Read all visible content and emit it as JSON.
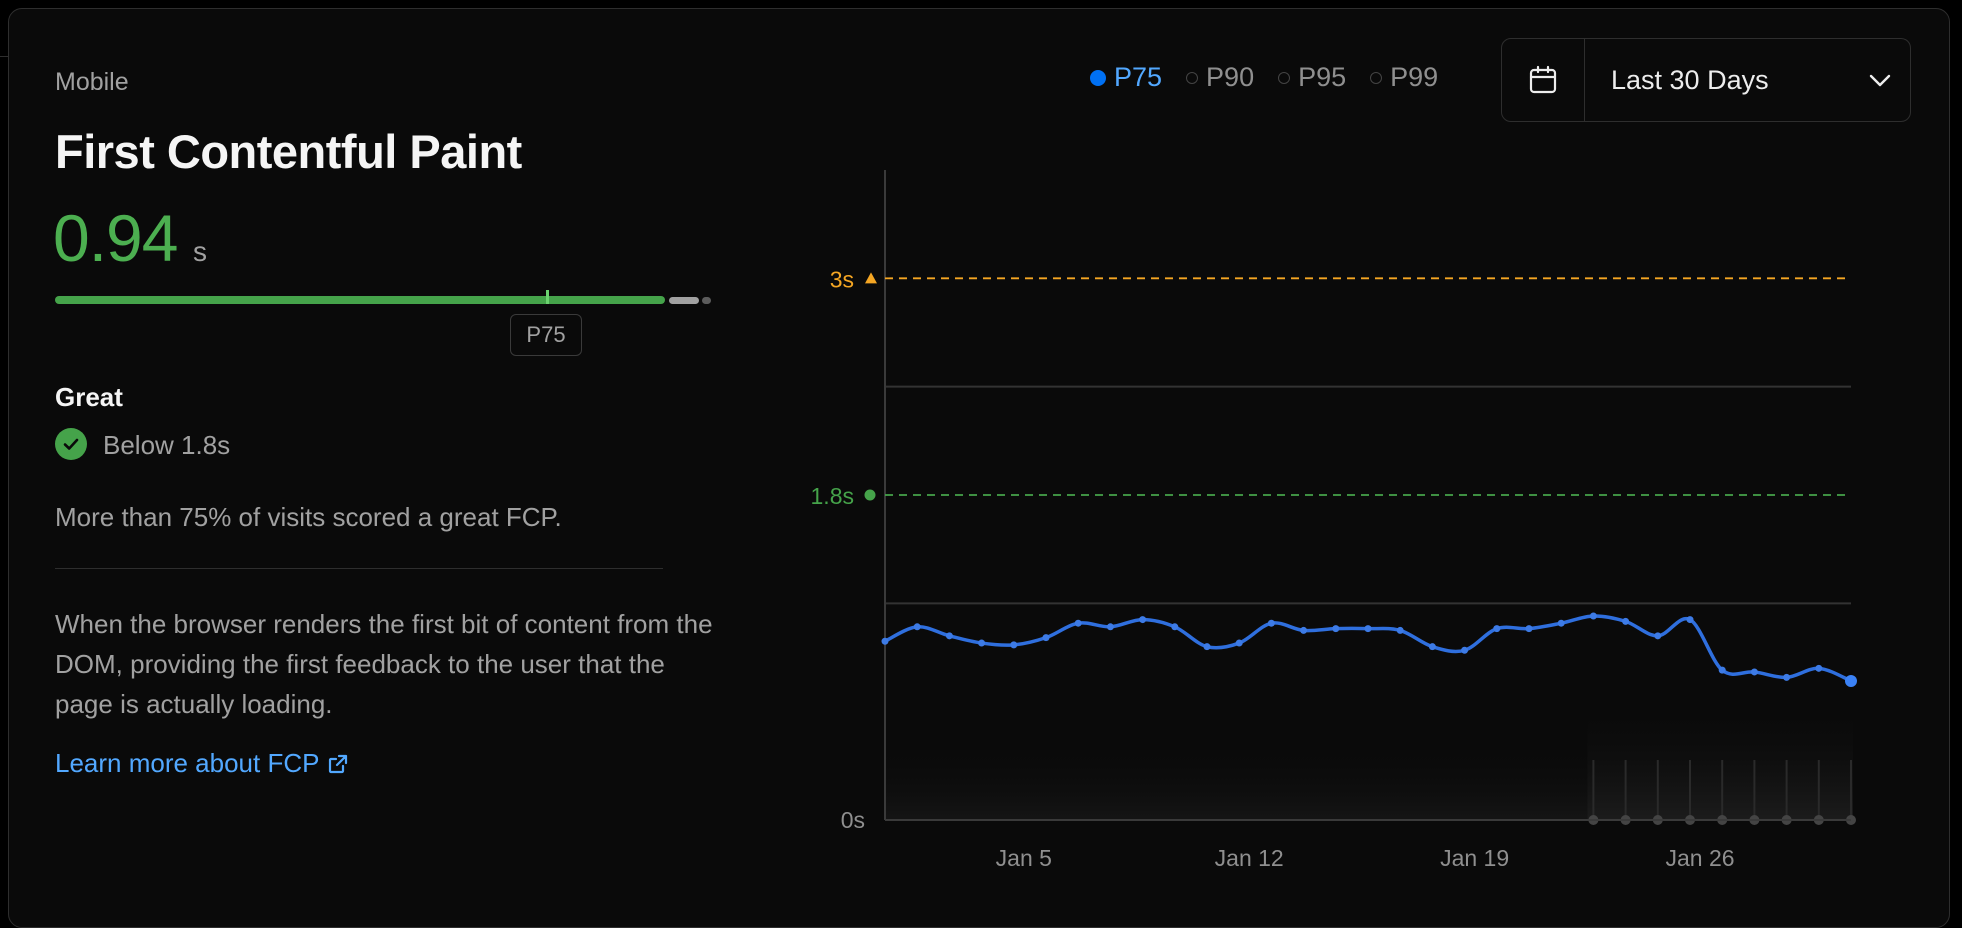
{
  "device_label": "Mobile",
  "metric": {
    "title": "First Contentful Paint",
    "value": "0.94",
    "unit": "s",
    "percentile_tag": "P75",
    "rating": "Great",
    "threshold_text": "Below 1.8s",
    "summary": "More than 75% of visits scored a great FCP.",
    "description": "When the browser renders the first bit of content from the DOM, providing the first feedback to the user that the page is actually loading.",
    "learn_more": "Learn more about FCP"
  },
  "legend": [
    {
      "label": "P75",
      "active": true
    },
    {
      "label": "P90",
      "active": false
    },
    {
      "label": "P95",
      "active": false
    },
    {
      "label": "P99",
      "active": false
    }
  ],
  "date_range": {
    "label": "Last 30 Days",
    "icon": "calendar-icon"
  },
  "colors": {
    "good": "#45a34a",
    "needs_improvement": "#f5a623",
    "line": "#2f6fde",
    "link": "#52a8ff"
  },
  "chart_data": {
    "type": "line",
    "ylim": [
      0,
      3.6
    ],
    "y_ticks": [
      "0s"
    ],
    "thresholds": [
      {
        "label": "3s",
        "value": 3.0,
        "color": "#f5a623",
        "marker": "triangle"
      },
      {
        "label": "1.8s",
        "value": 1.8,
        "color": "#45a34a",
        "marker": "circle"
      }
    ],
    "x_ticks": [
      {
        "label": "Jan 5",
        "day": 5
      },
      {
        "label": "Jan 12",
        "day": 12
      },
      {
        "label": "Jan 19",
        "day": 19
      },
      {
        "label": "Jan 26",
        "day": 26
      }
    ],
    "x_domain": [
      1,
      31
    ],
    "series": [
      {
        "name": "P75",
        "days": [
          1,
          2,
          3,
          4,
          5,
          6,
          7,
          8,
          9,
          10,
          11,
          12,
          13,
          14,
          15,
          16,
          17,
          18,
          19,
          20,
          21,
          22,
          23,
          24,
          25,
          26,
          27,
          28,
          29,
          30,
          31
        ],
        "values": [
          0.99,
          1.07,
          1.02,
          0.98,
          0.97,
          1.01,
          1.09,
          1.07,
          1.11,
          1.07,
          0.96,
          0.98,
          1.09,
          1.05,
          1.06,
          1.06,
          1.05,
          0.96,
          0.94,
          1.06,
          1.06,
          1.09,
          1.13,
          1.1,
          1.02,
          1.11,
          0.83,
          0.82,
          0.79,
          0.84,
          0.77
        ]
      }
    ],
    "sample_days": [
      23,
      24,
      25,
      26,
      27,
      28,
      29,
      30,
      31
    ]
  }
}
